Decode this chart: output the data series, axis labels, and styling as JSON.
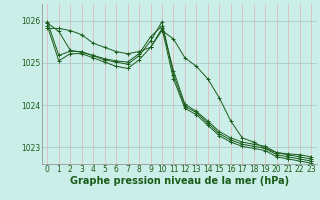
{
  "bg_color": "#cceee8",
  "grid_color_v": "#ddbbbb",
  "grid_color_h": "#aacccc",
  "line_color": "#1a5c1a",
  "xlabel": "Graphe pression niveau de la mer (hPa)",
  "xlabel_fontsize": 7.0,
  "ylabel_values": [
    1023,
    1024,
    1025,
    1026
  ],
  "xlim": [
    -0.5,
    23.5
  ],
  "ylim": [
    1022.6,
    1026.4
  ],
  "xticks": [
    0,
    1,
    2,
    3,
    4,
    5,
    6,
    7,
    8,
    9,
    10,
    11,
    12,
    13,
    14,
    15,
    16,
    17,
    18,
    19,
    20,
    21,
    22,
    23
  ],
  "tick_fontsize": 5.5,
  "series": [
    {
      "x": [
        0,
        1,
        2,
        3,
        4,
        5,
        6,
        7,
        8,
        9,
        10,
        11,
        12,
        13,
        14,
        15,
        16,
        17,
        18,
        19,
        20,
        21,
        22,
        23
      ],
      "y": [
        1025.95,
        1025.75,
        1025.3,
        1025.25,
        1025.18,
        1025.1,
        1025.05,
        1025.02,
        1025.22,
        1025.62,
        1025.88,
        1024.82,
        1024.02,
        1023.85,
        1023.62,
        1023.37,
        1023.22,
        1023.12,
        1023.07,
        1023.02,
        1022.87,
        1022.82,
        1022.77,
        1022.72
      ]
    },
    {
      "x": [
        0,
        1,
        2,
        3,
        4,
        5,
        6,
        7,
        8,
        9,
        10,
        11,
        12,
        13,
        14,
        15,
        16,
        17,
        18,
        19,
        20,
        21,
        22,
        23
      ],
      "y": [
        1025.98,
        1025.18,
        1025.28,
        1025.27,
        1025.17,
        1025.07,
        1025.02,
        1024.97,
        1025.17,
        1025.52,
        1025.98,
        1024.72,
        1023.97,
        1023.82,
        1023.57,
        1023.32,
        1023.17,
        1023.07,
        1023.02,
        1022.97,
        1022.82,
        1022.77,
        1022.72,
        1022.67
      ]
    },
    {
      "x": [
        0,
        1,
        2,
        3,
        4,
        5,
        6,
        7,
        8,
        9,
        10,
        11,
        12,
        13,
        14,
        15,
        16,
        17,
        18,
        19,
        20,
        21,
        22,
        23
      ],
      "y": [
        1025.88,
        1025.05,
        1025.22,
        1025.22,
        1025.12,
        1025.02,
        1024.92,
        1024.87,
        1025.07,
        1025.37,
        1025.82,
        1024.62,
        1023.92,
        1023.77,
        1023.52,
        1023.27,
        1023.12,
        1023.02,
        1022.97,
        1022.92,
        1022.77,
        1022.72,
        1022.67,
        1022.62
      ]
    },
    {
      "x": [
        0,
        1,
        2,
        3,
        4,
        5,
        6,
        7,
        8,
        9,
        10,
        11,
        12,
        13,
        14,
        15,
        16,
        17,
        18,
        19,
        20,
        21,
        22,
        23
      ],
      "y": [
        1025.82,
        1025.82,
        1025.77,
        1025.67,
        1025.47,
        1025.37,
        1025.27,
        1025.22,
        1025.27,
        1025.37,
        1025.77,
        1025.57,
        1025.12,
        1024.92,
        1024.62,
        1024.17,
        1023.62,
        1023.22,
        1023.12,
        1022.97,
        1022.87,
        1022.84,
        1022.82,
        1022.77
      ]
    }
  ]
}
